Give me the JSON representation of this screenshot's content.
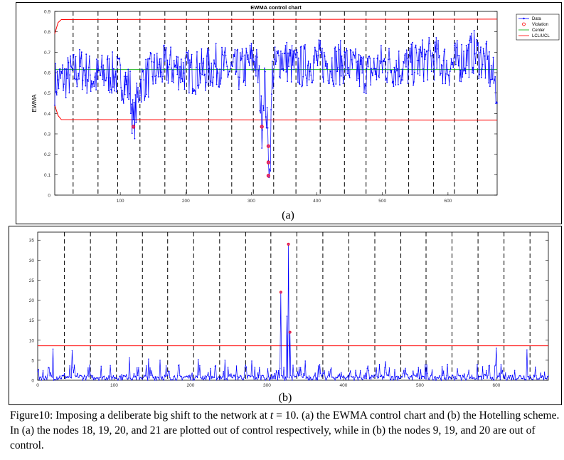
{
  "figure": {
    "panel_a_label": "(a)",
    "panel_b_label": "(b)",
    "caption_pre": "Figure10: Imposing a deliberate big shift to the network at ",
    "caption_t": "t",
    "caption_eq": " = 10",
    "caption_post": ". (a) the EWMA control chart and (b) the Hotelling scheme. In (a) the nodes 18, 19, 20, and 21 are plotted out of control respectively, while in (b) the nodes 9, 19, and 20 are out of control."
  },
  "colors": {
    "data": "#0000ff",
    "violation": "#ff0000",
    "center": "#00aa00",
    "limit": "#ff0000",
    "divider": "#000000"
  },
  "chart_data": [
    {
      "type": "line",
      "title": "EWMA control chart",
      "ylabel": "EWMA",
      "xlabel": "",
      "xlim": [
        0,
        675
      ],
      "ylim": [
        0,
        0.9
      ],
      "xticks": [
        100,
        200,
        300,
        400,
        500,
        600
      ],
      "yticks": [
        0,
        0.1,
        0.2,
        0.3,
        0.4,
        0.5,
        0.6,
        0.7,
        0.8,
        0.9
      ],
      "legend": {
        "position": "top-right",
        "entries": [
          "Data",
          "Violation",
          "Center",
          "LCL/UCL"
        ]
      },
      "center": 0.615,
      "ucl": 0.862,
      "lcl": 0.367,
      "limit_start": [
        [
          0,
          0.79
        ],
        [
          5,
          0.845
        ],
        [
          10,
          0.86
        ]
      ],
      "limit_start_low": [
        [
          0,
          0.44
        ],
        [
          5,
          0.39
        ],
        [
          10,
          0.37
        ]
      ],
      "node_boundaries": [
        28,
        66,
        96,
        130,
        168,
        201,
        235,
        270,
        303,
        334,
        368,
        405,
        442,
        475,
        505,
        540,
        578,
        610,
        645
      ],
      "data_anchors": [
        [
          0,
          0.55
        ],
        [
          20,
          0.58
        ],
        [
          40,
          0.62
        ],
        [
          60,
          0.57
        ],
        [
          80,
          0.6
        ],
        [
          100,
          0.58
        ],
        [
          115,
          0.52
        ],
        [
          120,
          0.34
        ],
        [
          130,
          0.55
        ],
        [
          150,
          0.6
        ],
        [
          170,
          0.63
        ],
        [
          190,
          0.62
        ],
        [
          210,
          0.6
        ],
        [
          230,
          0.61
        ],
        [
          250,
          0.64
        ],
        [
          270,
          0.6
        ],
        [
          290,
          0.62
        ],
        [
          305,
          0.68
        ],
        [
          312,
          0.55
        ],
        [
          316,
          0.34
        ],
        [
          320,
          0.58
        ],
        [
          324,
          0.33
        ],
        [
          326,
          0.24
        ],
        [
          328,
          0.1
        ],
        [
          332,
          0.6
        ],
        [
          345,
          0.68
        ],
        [
          370,
          0.62
        ],
        [
          400,
          0.66
        ],
        [
          420,
          0.64
        ],
        [
          440,
          0.65
        ],
        [
          460,
          0.61
        ],
        [
          480,
          0.6
        ],
        [
          500,
          0.64
        ],
        [
          520,
          0.63
        ],
        [
          540,
          0.63
        ],
        [
          560,
          0.66
        ],
        [
          580,
          0.67
        ],
        [
          600,
          0.63
        ],
        [
          620,
          0.66
        ],
        [
          640,
          0.7
        ],
        [
          660,
          0.64
        ],
        [
          675,
          0.52
        ]
      ],
      "violations": [
        [
          120,
          0.335
        ],
        [
          316,
          0.335
        ],
        [
          326,
          0.24
        ],
        [
          326,
          0.16
        ],
        [
          326,
          0.095
        ]
      ]
    },
    {
      "type": "line",
      "title": "",
      "xlabel": "",
      "ylabel": "",
      "xlim": [
        0,
        668
      ],
      "ylim": [
        0,
        37
      ],
      "xticks": [
        0,
        100,
        200,
        300,
        400,
        500,
        600
      ],
      "yticks": [
        0,
        5,
        10,
        15,
        20,
        25,
        30,
        35
      ],
      "ucl": 8.6,
      "node_boundaries": [
        35,
        69,
        103,
        137,
        170,
        204,
        238,
        272,
        305,
        339,
        373,
        407,
        441,
        475,
        508,
        542,
        576,
        610,
        644
      ],
      "spikes": [
        [
          20,
          7.8
        ],
        [
          45,
          7.4
        ],
        [
          120,
          5.6
        ],
        [
          145,
          5.3
        ],
        [
          160,
          5.0
        ],
        [
          210,
          5.2
        ],
        [
          245,
          5.0
        ],
        [
          280,
          4.8
        ],
        [
          318,
          22.0
        ],
        [
          326,
          16.0
        ],
        [
          328,
          34.0
        ],
        [
          330,
          12.0
        ],
        [
          350,
          4.8
        ],
        [
          455,
          4.6
        ],
        [
          600,
          8.0
        ],
        [
          640,
          7.6
        ]
      ],
      "violations": [
        [
          318,
          22.0
        ],
        [
          328,
          34.0
        ],
        [
          330,
          12.0
        ]
      ]
    }
  ]
}
